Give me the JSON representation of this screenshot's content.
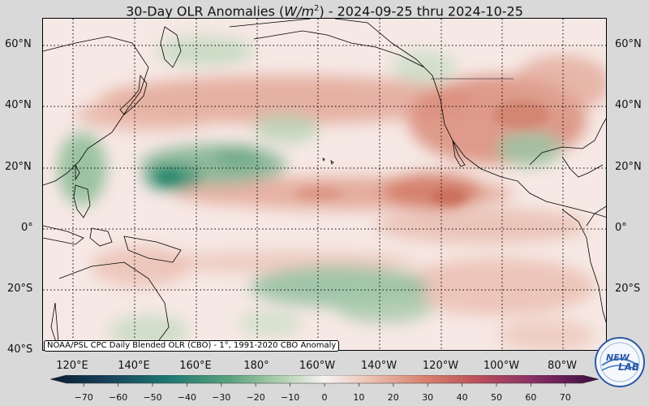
{
  "title": {
    "prefix": "30-Day OLR Anomalies (",
    "unit_main": "W/m",
    "unit_exp": "2",
    "suffix": ") - 2024-09-25 thru 2024-10-25"
  },
  "lat_labels_left": [
    "60°N",
    "40°N",
    "20°N",
    "0°",
    "20°S",
    "40°S"
  ],
  "lat_labels_right": [
    "60°N",
    "40°N",
    "20°N",
    "0°",
    "20°S"
  ],
  "lon_labels": [
    "120°E",
    "140°E",
    "160°E",
    "180°",
    "160°W",
    "140°W",
    "120°W",
    "100°W",
    "80°W"
  ],
  "source_note": "NOAA/PSL CPC Daily Blended OLR (CBO) - 1°, 1991-2020 CBO Anomaly",
  "colorbar": {
    "ticks": [
      "−70",
      "−60",
      "−50",
      "−40",
      "−30",
      "−20",
      "−10",
      "0",
      "10",
      "20",
      "30",
      "40",
      "50",
      "60",
      "70"
    ],
    "min": -75,
    "max": 75
  },
  "logo": {
    "text_a": "NEW",
    "text_b": "LAB"
  }
}
